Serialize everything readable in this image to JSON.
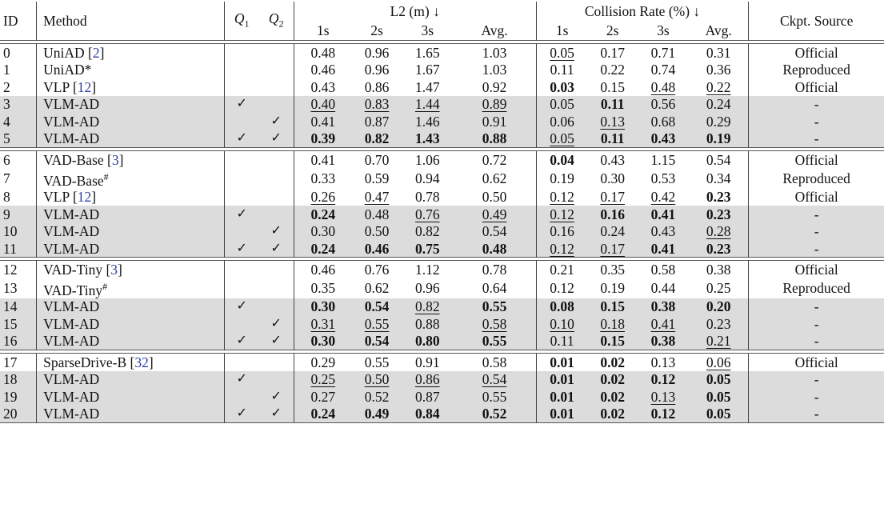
{
  "header": {
    "id": "ID",
    "method": "Method",
    "q1": "Q",
    "q1_sub": "1",
    "q2": "Q",
    "q2_sub": "2",
    "l2_group": "L2 (m) ↓",
    "collision_group": "Collision Rate (%) ↓",
    "ckpt": "Ckpt. Source",
    "sub_cols": [
      "1s",
      "2s",
      "3s",
      "Avg.",
      "1s",
      "2s",
      "3s",
      "Avg."
    ]
  },
  "check_mark": "✓",
  "groups": [
    {
      "rows": [
        {
          "id": "0",
          "method": "UniAD",
          "cite": "2",
          "sup": "",
          "shade": false,
          "q1": false,
          "q2": false,
          "vals": [
            [
              "0.48",
              ""
            ],
            [
              "0.96",
              ""
            ],
            [
              "1.65",
              ""
            ],
            [
              "1.03",
              ""
            ],
            [
              "0.05",
              "u"
            ],
            [
              "0.17",
              ""
            ],
            [
              "0.71",
              ""
            ],
            [
              "0.31",
              ""
            ]
          ],
          "ckpt": "Official"
        },
        {
          "id": "1",
          "method": "UniAD*",
          "cite": "",
          "sup": "",
          "shade": false,
          "q1": false,
          "q2": false,
          "vals": [
            [
              "0.46",
              ""
            ],
            [
              "0.96",
              ""
            ],
            [
              "1.67",
              ""
            ],
            [
              "1.03",
              ""
            ],
            [
              "0.11",
              ""
            ],
            [
              "0.22",
              ""
            ],
            [
              "0.74",
              ""
            ],
            [
              "0.36",
              ""
            ]
          ],
          "ckpt": "Reproduced"
        },
        {
          "id": "2",
          "method": "VLP",
          "cite": "12",
          "sup": "",
          "shade": false,
          "q1": false,
          "q2": false,
          "vals": [
            [
              "0.43",
              ""
            ],
            [
              "0.86",
              ""
            ],
            [
              "1.47",
              ""
            ],
            [
              "0.92",
              ""
            ],
            [
              "0.03",
              "b"
            ],
            [
              "0.15",
              ""
            ],
            [
              "0.48",
              "u"
            ],
            [
              "0.22",
              "u"
            ]
          ],
          "ckpt": "Official"
        },
        {
          "id": "3",
          "method": "VLM-AD",
          "cite": "",
          "sup": "",
          "shade": true,
          "q1": true,
          "q2": false,
          "vals": [
            [
              "0.40",
              "u"
            ],
            [
              "0.83",
              "u"
            ],
            [
              "1.44",
              "u"
            ],
            [
              "0.89",
              "u"
            ],
            [
              "0.05",
              ""
            ],
            [
              "0.11",
              "b"
            ],
            [
              "0.56",
              ""
            ],
            [
              "0.24",
              ""
            ]
          ],
          "ckpt": "-"
        },
        {
          "id": "4",
          "method": "VLM-AD",
          "cite": "",
          "sup": "",
          "shade": true,
          "q1": false,
          "q2": true,
          "vals": [
            [
              "0.41",
              ""
            ],
            [
              "0.87",
              ""
            ],
            [
              "1.46",
              ""
            ],
            [
              "0.91",
              ""
            ],
            [
              "0.06",
              ""
            ],
            [
              "0.13",
              "u"
            ],
            [
              "0.68",
              ""
            ],
            [
              "0.29",
              ""
            ]
          ],
          "ckpt": "-"
        },
        {
          "id": "5",
          "method": "VLM-AD",
          "cite": "",
          "sup": "",
          "shade": true,
          "q1": true,
          "q2": true,
          "vals": [
            [
              "0.39",
              "b"
            ],
            [
              "0.82",
              "b"
            ],
            [
              "1.43",
              "b"
            ],
            [
              "0.88",
              "b"
            ],
            [
              "0.05",
              "u"
            ],
            [
              "0.11",
              "b"
            ],
            [
              "0.43",
              "b"
            ],
            [
              "0.19",
              "b"
            ]
          ],
          "ckpt": "-"
        }
      ]
    },
    {
      "rows": [
        {
          "id": "6",
          "method": "VAD-Base",
          "cite": "3",
          "sup": "",
          "shade": false,
          "q1": false,
          "q2": false,
          "vals": [
            [
              "0.41",
              ""
            ],
            [
              "0.70",
              ""
            ],
            [
              "1.06",
              ""
            ],
            [
              "0.72",
              ""
            ],
            [
              "0.04",
              "b"
            ],
            [
              "0.43",
              ""
            ],
            [
              "1.15",
              ""
            ],
            [
              "0.54",
              ""
            ]
          ],
          "ckpt": "Official"
        },
        {
          "id": "7",
          "method": "VAD-Base",
          "cite": "",
          "sup": "#",
          "shade": false,
          "q1": false,
          "q2": false,
          "vals": [
            [
              "0.33",
              ""
            ],
            [
              "0.59",
              ""
            ],
            [
              "0.94",
              ""
            ],
            [
              "0.62",
              ""
            ],
            [
              "0.19",
              ""
            ],
            [
              "0.30",
              ""
            ],
            [
              "0.53",
              ""
            ],
            [
              "0.34",
              ""
            ]
          ],
          "ckpt": "Reproduced"
        },
        {
          "id": "8",
          "method": "VLP",
          "cite": "12",
          "sup": "",
          "shade": false,
          "q1": false,
          "q2": false,
          "vals": [
            [
              "0.26",
              "u"
            ],
            [
              "0.47",
              "u"
            ],
            [
              "0.78",
              ""
            ],
            [
              "0.50",
              ""
            ],
            [
              "0.12",
              "u"
            ],
            [
              "0.17",
              "u"
            ],
            [
              "0.42",
              "u"
            ],
            [
              "0.23",
              "b"
            ]
          ],
          "ckpt": "Official"
        },
        {
          "id": "9",
          "method": "VLM-AD",
          "cite": "",
          "sup": "",
          "shade": true,
          "q1": true,
          "q2": false,
          "vals": [
            [
              "0.24",
              "b"
            ],
            [
              "0.48",
              ""
            ],
            [
              "0.76",
              "u"
            ],
            [
              "0.49",
              "u"
            ],
            [
              "0.12",
              "u"
            ],
            [
              "0.16",
              "b"
            ],
            [
              "0.41",
              "b"
            ],
            [
              "0.23",
              "b"
            ]
          ],
          "ckpt": "-"
        },
        {
          "id": "10",
          "method": "VLM-AD",
          "cite": "",
          "sup": "",
          "shade": true,
          "q1": false,
          "q2": true,
          "vals": [
            [
              "0.30",
              ""
            ],
            [
              "0.50",
              ""
            ],
            [
              "0.82",
              ""
            ],
            [
              "0.54",
              ""
            ],
            [
              "0.16",
              ""
            ],
            [
              "0.24",
              ""
            ],
            [
              "0.43",
              ""
            ],
            [
              "0.28",
              "u"
            ]
          ],
          "ckpt": "-"
        },
        {
          "id": "11",
          "method": "VLM-AD",
          "cite": "",
          "sup": "",
          "shade": true,
          "q1": true,
          "q2": true,
          "vals": [
            [
              "0.24",
              "b"
            ],
            [
              "0.46",
              "b"
            ],
            [
              "0.75",
              "b"
            ],
            [
              "0.48",
              "b"
            ],
            [
              "0.12",
              "u"
            ],
            [
              "0.17",
              "u"
            ],
            [
              "0.41",
              "b"
            ],
            [
              "0.23",
              "b"
            ]
          ],
          "ckpt": "-"
        }
      ]
    },
    {
      "rows": [
        {
          "id": "12",
          "method": "VAD-Tiny",
          "cite": "3",
          "sup": "",
          "shade": false,
          "q1": false,
          "q2": false,
          "vals": [
            [
              "0.46",
              ""
            ],
            [
              "0.76",
              ""
            ],
            [
              "1.12",
              ""
            ],
            [
              "0.78",
              ""
            ],
            [
              "0.21",
              ""
            ],
            [
              "0.35",
              ""
            ],
            [
              "0.58",
              ""
            ],
            [
              "0.38",
              ""
            ]
          ],
          "ckpt": "Official"
        },
        {
          "id": "13",
          "method": "VAD-Tiny",
          "cite": "",
          "sup": "#",
          "shade": false,
          "q1": false,
          "q2": false,
          "vals": [
            [
              "0.35",
              ""
            ],
            [
              "0.62",
              ""
            ],
            [
              "0.96",
              ""
            ],
            [
              "0.64",
              ""
            ],
            [
              "0.12",
              ""
            ],
            [
              "0.19",
              ""
            ],
            [
              "0.44",
              ""
            ],
            [
              "0.25",
              ""
            ]
          ],
          "ckpt": "Reproduced"
        },
        {
          "id": "14",
          "method": "VLM-AD",
          "cite": "",
          "sup": "",
          "shade": true,
          "q1": true,
          "q2": false,
          "vals": [
            [
              "0.30",
              "b"
            ],
            [
              "0.54",
              "b"
            ],
            [
              "0.82",
              "u"
            ],
            [
              "0.55",
              "b"
            ],
            [
              "0.08",
              "b"
            ],
            [
              "0.15",
              "b"
            ],
            [
              "0.38",
              "b"
            ],
            [
              "0.20",
              "b"
            ]
          ],
          "ckpt": "-"
        },
        {
          "id": "15",
          "method": "VLM-AD",
          "cite": "",
          "sup": "",
          "shade": true,
          "q1": false,
          "q2": true,
          "vals": [
            [
              "0.31",
              "u"
            ],
            [
              "0.55",
              "u"
            ],
            [
              "0.88",
              ""
            ],
            [
              "0.58",
              "u"
            ],
            [
              "0.10",
              "u"
            ],
            [
              "0.18",
              "u"
            ],
            [
              "0.41",
              "u"
            ],
            [
              "0.23",
              ""
            ]
          ],
          "ckpt": "-"
        },
        {
          "id": "16",
          "method": "VLM-AD",
          "cite": "",
          "sup": "",
          "shade": true,
          "q1": true,
          "q2": true,
          "vals": [
            [
              "0.30",
              "b"
            ],
            [
              "0.54",
              "b"
            ],
            [
              "0.80",
              "b"
            ],
            [
              "0.55",
              "b"
            ],
            [
              "0.11",
              ""
            ],
            [
              "0.15",
              "b"
            ],
            [
              "0.38",
              "b"
            ],
            [
              "0.21",
              "u"
            ]
          ],
          "ckpt": "-"
        }
      ]
    },
    {
      "rows": [
        {
          "id": "17",
          "method": "SparseDrive-B",
          "cite": "32",
          "sup": "",
          "shade": false,
          "q1": false,
          "q2": false,
          "vals": [
            [
              "0.29",
              ""
            ],
            [
              "0.55",
              ""
            ],
            [
              "0.91",
              ""
            ],
            [
              "0.58",
              ""
            ],
            [
              "0.01",
              "b"
            ],
            [
              "0.02",
              "b"
            ],
            [
              "0.13",
              ""
            ],
            [
              "0.06",
              "u"
            ]
          ],
          "ckpt": "Official"
        },
        {
          "id": "18",
          "method": "VLM-AD",
          "cite": "",
          "sup": "",
          "shade": true,
          "q1": true,
          "q2": false,
          "vals": [
            [
              "0.25",
              "u"
            ],
            [
              "0.50",
              "u"
            ],
            [
              "0.86",
              "u"
            ],
            [
              "0.54",
              "u"
            ],
            [
              "0.01",
              "b"
            ],
            [
              "0.02",
              "b"
            ],
            [
              "0.12",
              "b"
            ],
            [
              "0.05",
              "b"
            ]
          ],
          "ckpt": "-"
        },
        {
          "id": "19",
          "method": "VLM-AD",
          "cite": "",
          "sup": "",
          "shade": true,
          "q1": false,
          "q2": true,
          "vals": [
            [
              "0.27",
              ""
            ],
            [
              "0.52",
              ""
            ],
            [
              "0.87",
              ""
            ],
            [
              "0.55",
              ""
            ],
            [
              "0.01",
              "b"
            ],
            [
              "0.02",
              "b"
            ],
            [
              "0.13",
              "u"
            ],
            [
              "0.05",
              "b"
            ]
          ],
          "ckpt": "-"
        },
        {
          "id": "20",
          "method": "VLM-AD",
          "cite": "",
          "sup": "",
          "shade": true,
          "q1": true,
          "q2": true,
          "vals": [
            [
              "0.24",
              "b"
            ],
            [
              "0.49",
              "b"
            ],
            [
              "0.84",
              "b"
            ],
            [
              "0.52",
              "b"
            ],
            [
              "0.01",
              "b"
            ],
            [
              "0.02",
              "b"
            ],
            [
              "0.12",
              "b"
            ],
            [
              "0.05",
              "b"
            ]
          ],
          "ckpt": "-"
        }
      ]
    }
  ]
}
